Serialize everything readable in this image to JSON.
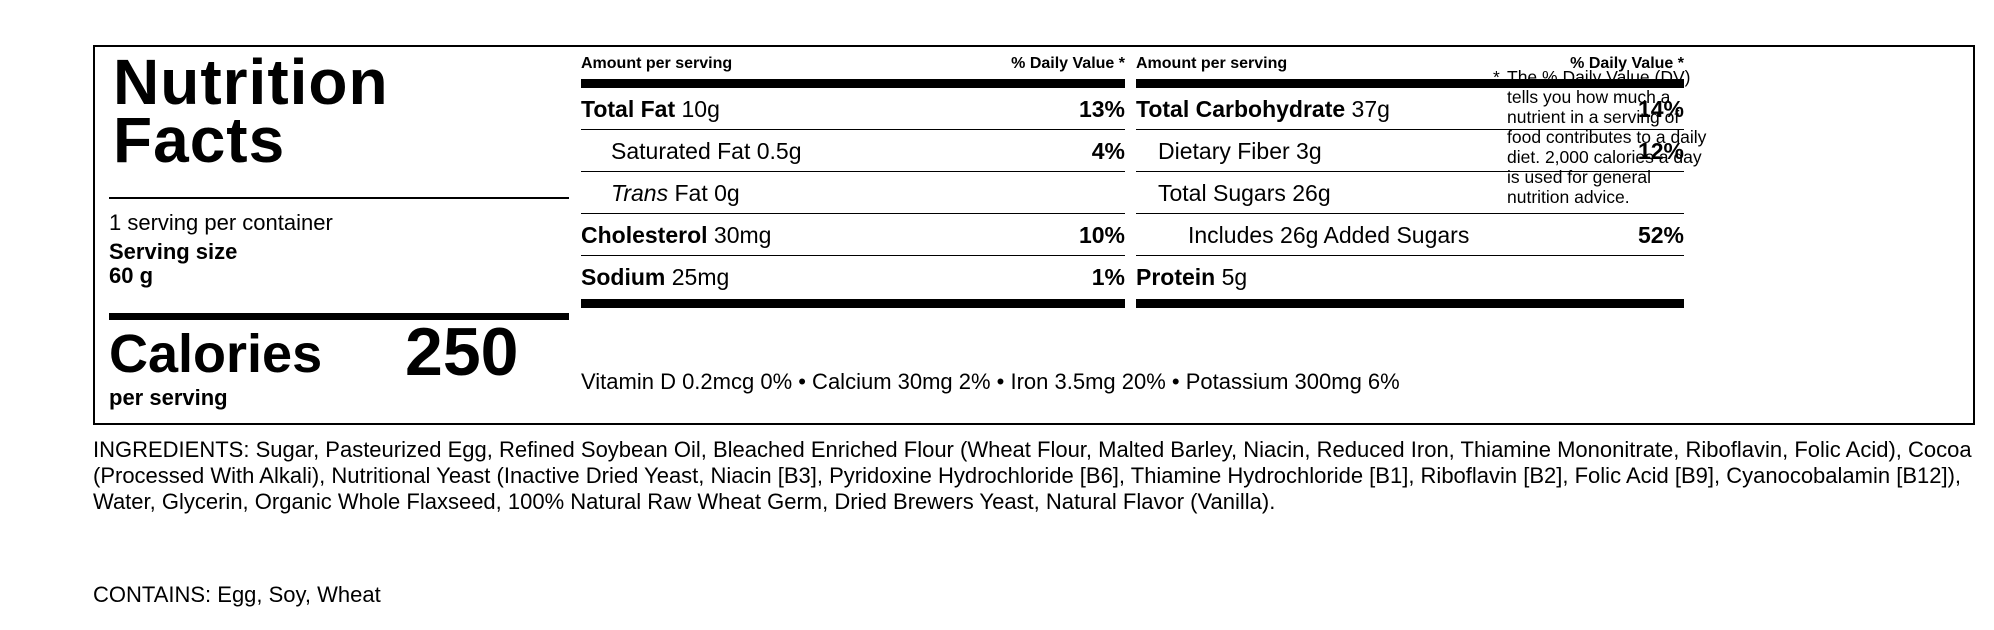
{
  "title_line1": "Nutrition",
  "title_line2": "Facts",
  "servings_per_container": "1 serving per container",
  "serving_size_label": "Serving size",
  "serving_size_value": "60 g",
  "calories_label": "Calories",
  "calories_value": "250",
  "per_serving": "per serving",
  "col_header_left": "Amount per serving",
  "col_header_right": "% Daily Value",
  "col_header_marker": "*",
  "left_column": [
    {
      "name": "Total Fat",
      "amount": "10g",
      "dv": "13%"
    },
    {
      "name": "Saturated Fat",
      "amount": "0.5g",
      "dv": "4%"
    },
    {
      "name": "Trans",
      "name_suffix": " Fat",
      "amount": "0g",
      "dv": ""
    },
    {
      "name": "Cholesterol",
      "amount": "30mg",
      "dv": "10%"
    },
    {
      "name": "Sodium",
      "amount": "25mg",
      "dv": "1%"
    }
  ],
  "right_column": [
    {
      "name": "Total Carbohydrate",
      "amount": "37g",
      "dv": "14%"
    },
    {
      "name": "Dietary Fiber",
      "amount": "3g",
      "dv": "12%"
    },
    {
      "name": "Total Sugars",
      "amount": "26g",
      "dv": ""
    },
    {
      "name": "Includes 26g Added Sugars",
      "amount": "",
      "dv": "52%"
    },
    {
      "name": "Protein",
      "amount": "5g",
      "dv": ""
    }
  ],
  "vitamins_minerals": "Vitamin D 0.2mcg 0%  •  Calcium 30mg 2%  •  Iron 3.5mg 20%  •  Potassium 300mg 6%",
  "footnote_marker": "*",
  "footnote": "The % Daily Value (DV) tells you how much a nutrient in a serving of food contributes to a daily diet. 2,000 calories a day is used for general nutrition advice.",
  "ingredients": "INGREDIENTS: Sugar, Pasteurized Egg, Refined Soybean Oil, Bleached Enriched Flour (Wheat Flour, Malted Barley, Niacin, Reduced Iron, Thiamine Mononitrate, Riboflavin, Folic Acid), Cocoa (Processed With Alkali), Nutritional Yeast (Inactive Dried Yeast, Niacin [B3], Pyridoxine Hydrochloride [B6], Thiamine Hydrochloride [B1], Riboflavin [B2], Folic Acid [B9], Cyanocobalamin [B12]), Water, Glycerin, Organic Whole Flaxseed, 100% Natural Raw Wheat Germ, Dried Brewers Yeast, Natural Flavor (Vanilla).",
  "contains": "CONTAINS: Egg, Soy, Wheat"
}
